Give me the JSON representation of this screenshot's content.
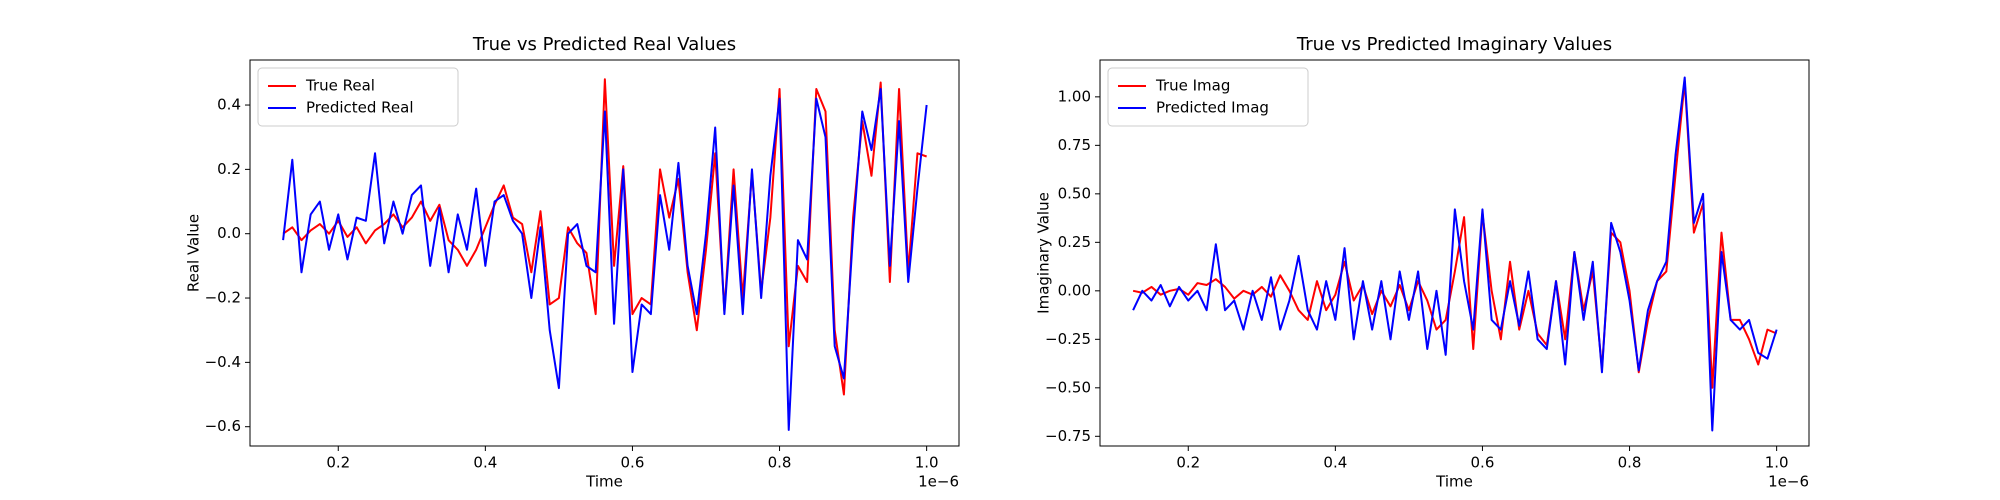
{
  "chart_data": [
    {
      "type": "line",
      "title": "True vs Predicted Real Values",
      "x_label": "Time",
      "y_label": "Real Value",
      "x_offset_label": "1e−6",
      "x": [
        0.125,
        0.1375,
        0.15,
        0.1625,
        0.175,
        0.1875,
        0.2,
        0.2125,
        0.225,
        0.2375,
        0.25,
        0.2625,
        0.275,
        0.2875,
        0.3,
        0.3125,
        0.325,
        0.3375,
        0.35,
        0.3625,
        0.375,
        0.3875,
        0.4,
        0.4125,
        0.425,
        0.4375,
        0.45,
        0.4625,
        0.475,
        0.4875,
        0.5,
        0.5125,
        0.525,
        0.5375,
        0.55,
        0.5625,
        0.575,
        0.5875,
        0.6,
        0.6125,
        0.625,
        0.6375,
        0.65,
        0.6625,
        0.675,
        0.6875,
        0.7,
        0.7125,
        0.725,
        0.7375,
        0.75,
        0.7625,
        0.775,
        0.7875,
        0.8,
        0.8125,
        0.825,
        0.8375,
        0.85,
        0.8625,
        0.875,
        0.8875,
        0.9,
        0.9125,
        0.925,
        0.9375,
        0.95,
        0.9625,
        0.975,
        0.9875,
        1.0
      ],
      "series": [
        {
          "name": "True Real",
          "color": "#ff0000",
          "values": [
            0.0,
            0.02,
            -0.02,
            0.01,
            0.03,
            0.0,
            0.04,
            -0.01,
            0.02,
            -0.03,
            0.01,
            0.03,
            0.06,
            0.02,
            0.05,
            0.1,
            0.04,
            0.09,
            -0.02,
            -0.05,
            -0.1,
            -0.05,
            0.02,
            0.09,
            0.15,
            0.05,
            0.03,
            -0.12,
            0.07,
            -0.22,
            -0.2,
            0.02,
            -0.03,
            -0.06,
            -0.25,
            0.48,
            -0.1,
            0.21,
            -0.25,
            -0.2,
            -0.22,
            0.2,
            0.05,
            0.17,
            -0.12,
            -0.3,
            -0.05,
            0.25,
            -0.24,
            0.2,
            -0.2,
            0.19,
            -0.18,
            0.05,
            0.45,
            -0.35,
            -0.1,
            -0.15,
            0.45,
            0.38,
            -0.3,
            -0.5,
            0.05,
            0.35,
            0.18,
            0.47,
            -0.15,
            0.45,
            -0.12,
            0.25,
            0.24
          ]
        },
        {
          "name": "Predicted Real",
          "color": "#0000ff",
          "values": [
            -0.02,
            0.23,
            -0.12,
            0.06,
            0.1,
            -0.05,
            0.06,
            -0.08,
            0.05,
            0.04,
            0.25,
            -0.03,
            0.1,
            0.0,
            0.12,
            0.15,
            -0.1,
            0.08,
            -0.12,
            0.06,
            -0.05,
            0.14,
            -0.1,
            0.1,
            0.12,
            0.04,
            0.0,
            -0.2,
            0.02,
            -0.3,
            -0.48,
            0.0,
            0.03,
            -0.1,
            -0.12,
            0.38,
            -0.28,
            0.2,
            -0.43,
            -0.22,
            -0.25,
            0.12,
            -0.05,
            0.22,
            -0.1,
            -0.25,
            0.0,
            0.33,
            -0.25,
            0.15,
            -0.25,
            0.2,
            -0.2,
            0.18,
            0.42,
            -0.61,
            -0.02,
            -0.08,
            0.42,
            0.3,
            -0.35,
            -0.45,
            0.0,
            0.38,
            0.26,
            0.45,
            -0.1,
            0.35,
            -0.15,
            0.14,
            0.4
          ]
        }
      ],
      "xlim": [
        0.08,
        1.044
      ],
      "xticks": [
        0.2,
        0.4,
        0.6,
        0.8,
        {
          "value": 1.0,
          "label": "1.0"
        }
      ],
      "ylim": [
        -0.66,
        0.54
      ],
      "yticks": [
        {
          "value": -0.6,
          "label": "−0.6"
        },
        {
          "value": -0.4,
          "label": "−0.4"
        },
        {
          "value": -0.2,
          "label": "−0.2"
        },
        {
          "value": 0.0,
          "label": "0.0"
        },
        0.2,
        0.4
      ],
      "legend": "upper left"
    },
    {
      "type": "line",
      "title": "True vs Predicted Imaginary Values",
      "x_label": "Time",
      "y_label": "Imaginary Value",
      "x_offset_label": "1e−6",
      "x": [
        0.125,
        0.1375,
        0.15,
        0.1625,
        0.175,
        0.1875,
        0.2,
        0.2125,
        0.225,
        0.2375,
        0.25,
        0.2625,
        0.275,
        0.2875,
        0.3,
        0.3125,
        0.325,
        0.3375,
        0.35,
        0.3625,
        0.375,
        0.3875,
        0.4,
        0.4125,
        0.425,
        0.4375,
        0.45,
        0.4625,
        0.475,
        0.4875,
        0.5,
        0.5125,
        0.525,
        0.5375,
        0.55,
        0.5625,
        0.575,
        0.5875,
        0.6,
        0.6125,
        0.625,
        0.6375,
        0.65,
        0.6625,
        0.675,
        0.6875,
        0.7,
        0.7125,
        0.725,
        0.7375,
        0.75,
        0.7625,
        0.775,
        0.7875,
        0.8,
        0.8125,
        0.825,
        0.8375,
        0.85,
        0.8625,
        0.875,
        0.8875,
        0.9,
        0.9125,
        0.925,
        0.9375,
        0.95,
        0.9625,
        0.975,
        0.9875,
        1.0
      ],
      "series": [
        {
          "name": "True Imag",
          "color": "#ff0000",
          "values": [
            0.0,
            -0.01,
            0.02,
            -0.02,
            0.0,
            0.01,
            -0.02,
            0.04,
            0.03,
            0.06,
            0.02,
            -0.04,
            0.0,
            -0.02,
            0.02,
            -0.03,
            0.08,
            0.0,
            -0.1,
            -0.15,
            0.05,
            -0.1,
            -0.02,
            0.15,
            -0.05,
            0.03,
            -0.12,
            0.0,
            -0.08,
            0.03,
            -0.1,
            0.05,
            -0.05,
            -0.2,
            -0.15,
            0.1,
            0.38,
            -0.3,
            0.4,
            0.0,
            -0.25,
            0.15,
            -0.2,
            0.0,
            -0.22,
            -0.28,
            0.05,
            -0.25,
            0.2,
            -0.1,
            0.1,
            -0.4,
            0.3,
            0.25,
            0.0,
            -0.42,
            -0.15,
            0.05,
            0.1,
            0.6,
            1.08,
            0.3,
            0.45,
            -0.5,
            0.3,
            -0.15,
            -0.15,
            -0.25,
            -0.38,
            -0.2,
            -0.22
          ]
        },
        {
          "name": "Predicted Imag",
          "color": "#0000ff",
          "values": [
            -0.1,
            0.0,
            -0.05,
            0.03,
            -0.08,
            0.02,
            -0.05,
            0.0,
            -0.1,
            0.24,
            -0.1,
            -0.05,
            -0.2,
            0.0,
            -0.15,
            0.07,
            -0.2,
            -0.05,
            0.18,
            -0.1,
            -0.2,
            0.05,
            -0.15,
            0.22,
            -0.25,
            0.05,
            -0.2,
            0.05,
            -0.25,
            0.1,
            -0.15,
            0.1,
            -0.3,
            0.0,
            -0.33,
            0.42,
            0.05,
            -0.2,
            0.42,
            -0.15,
            -0.2,
            0.05,
            -0.18,
            0.1,
            -0.25,
            -0.3,
            0.05,
            -0.38,
            0.2,
            -0.15,
            0.15,
            -0.42,
            0.35,
            0.2,
            -0.05,
            -0.41,
            -0.1,
            0.05,
            0.15,
            0.7,
            1.1,
            0.35,
            0.5,
            -0.72,
            0.2,
            -0.15,
            -0.2,
            -0.15,
            -0.32,
            -0.35,
            -0.2
          ]
        }
      ],
      "xlim": [
        0.08,
        1.044
      ],
      "xticks": [
        0.2,
        0.4,
        0.6,
        0.8,
        {
          "value": 1.0,
          "label": "1.0"
        }
      ],
      "ylim": [
        -0.8,
        1.19
      ],
      "yticks": [
        {
          "value": -0.75,
          "label": "−0.75"
        },
        {
          "value": -0.5,
          "label": "−0.50"
        },
        {
          "value": -0.25,
          "label": "−0.25"
        },
        {
          "value": 0.0,
          "label": "0.00"
        },
        {
          "value": 0.25,
          "label": "0.25"
        },
        {
          "value": 0.5,
          "label": "0.50"
        },
        {
          "value": 0.75,
          "label": "0.75"
        },
        {
          "value": 1.0,
          "label": "1.00"
        }
      ],
      "legend": "upper left"
    }
  ]
}
